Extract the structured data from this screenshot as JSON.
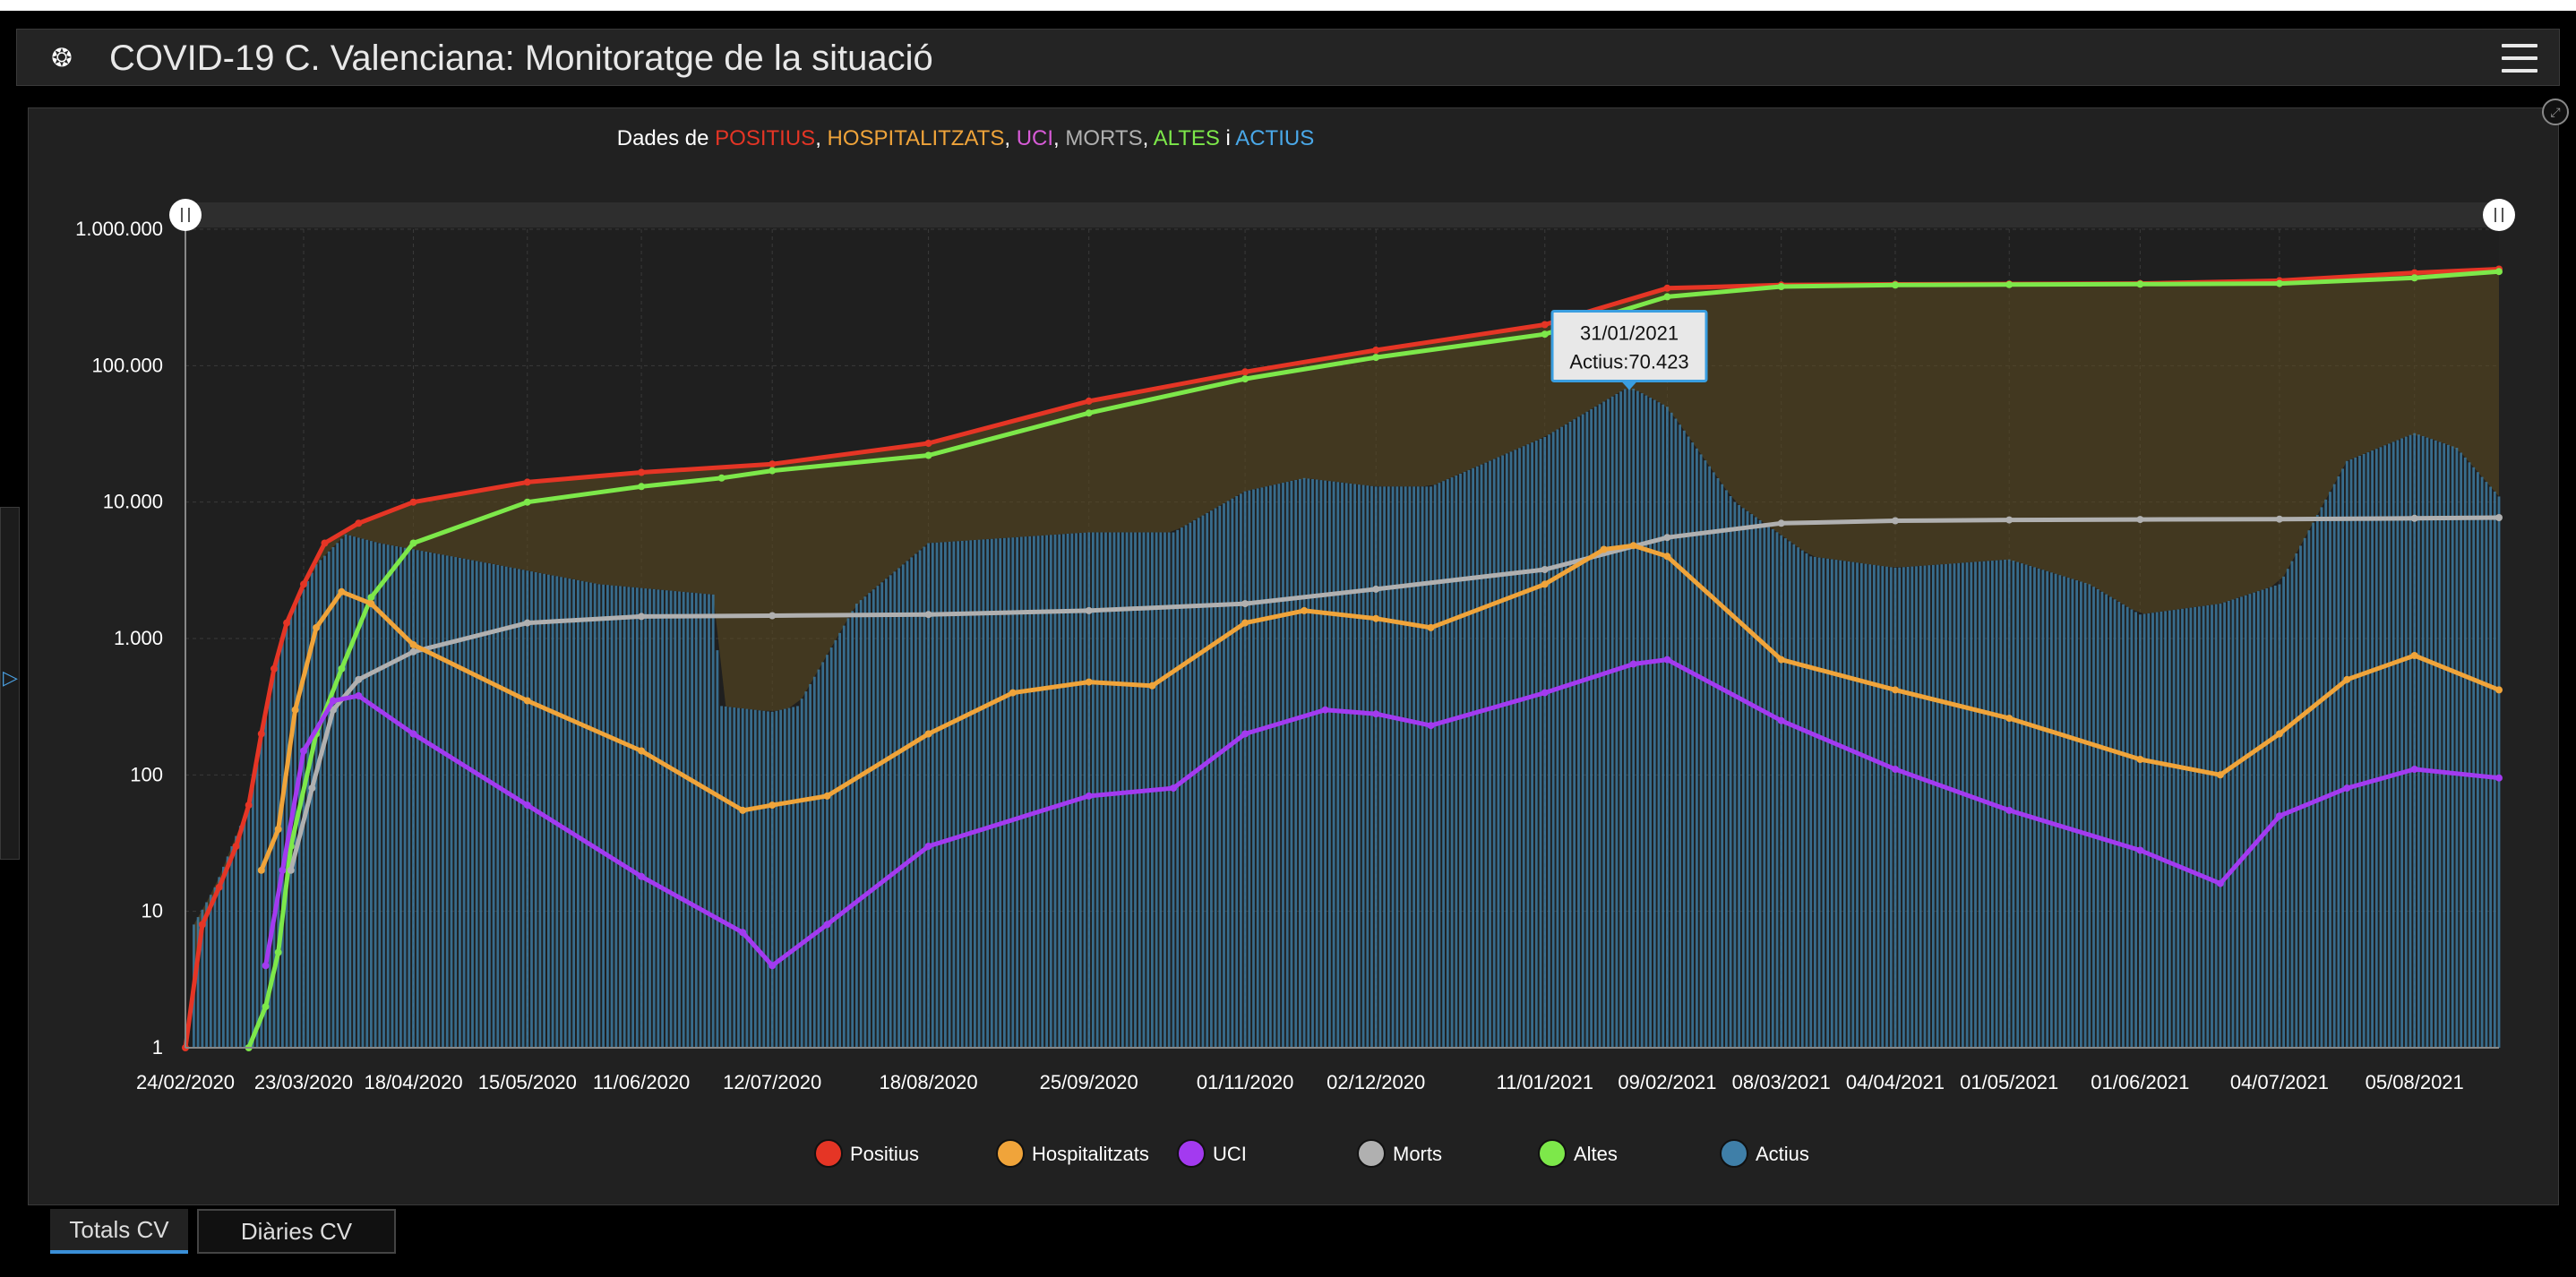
{
  "app": {
    "title": "COVID-19 C. Valenciana: Monitoratge de la situació",
    "logo_icon": "virus-logo-icon",
    "menu_icon": "hamburger-menu-icon"
  },
  "tabs": [
    {
      "label": "Totals CV",
      "active": true
    },
    {
      "label": "Diàries CV",
      "active": false
    }
  ],
  "tooltip": {
    "date": "31/01/2021",
    "text": "Actius:70.423"
  },
  "colors": {
    "positius": "#e53525",
    "hospitalitzats": "#f0a43a",
    "uci": "#a33af0",
    "morts": "#b0b0b0",
    "altes": "#7de84a",
    "actius": "#3f7fa8"
  },
  "chart_data": {
    "type": "line",
    "title_parts": [
      {
        "text": "Dades de ",
        "color": "#ffffff"
      },
      {
        "text": "POSITIUS",
        "color": "#e53525"
      },
      {
        "text": ", ",
        "color": "#ffffff"
      },
      {
        "text": "HOSPITALITZATS",
        "color": "#f0a43a"
      },
      {
        "text": ", ",
        "color": "#ffffff"
      },
      {
        "text": "UCI",
        "color": "#d65ad6"
      },
      {
        "text": ", ",
        "color": "#ffffff"
      },
      {
        "text": "MORTS",
        "color": "#b0b0b0"
      },
      {
        "text": ", ",
        "color": "#ffffff"
      },
      {
        "text": "ALTES",
        "color": "#7de84a"
      },
      {
        "text": " i ",
        "color": "#ffffff"
      },
      {
        "text": "ACTIUS",
        "color": "#4aa8e8"
      }
    ],
    "y_scale": "log",
    "ylim": [
      1,
      1000000
    ],
    "y_ticks": [
      {
        "value": 1,
        "label": "1"
      },
      {
        "value": 10,
        "label": "10"
      },
      {
        "value": 100,
        "label": "100"
      },
      {
        "value": 1000,
        "label": "1.000"
      },
      {
        "value": 10000,
        "label": "10.000"
      },
      {
        "value": 100000,
        "label": "100.000"
      },
      {
        "value": 1000000,
        "label": "1.000.000"
      }
    ],
    "x_range": [
      "2020-02-24",
      "2021-08-25"
    ],
    "x_ticks": [
      {
        "date": "2020-02-24",
        "label": "24/02/2020"
      },
      {
        "date": "2020-03-23",
        "label": "23/03/2020"
      },
      {
        "date": "2020-04-18",
        "label": "18/04/2020"
      },
      {
        "date": "2020-05-15",
        "label": "15/05/2020"
      },
      {
        "date": "2020-06-11",
        "label": "11/06/2020"
      },
      {
        "date": "2020-07-12",
        "label": "12/07/2020"
      },
      {
        "date": "2020-08-18",
        "label": "18/08/2020"
      },
      {
        "date": "2020-09-25",
        "label": "25/09/2020"
      },
      {
        "date": "2020-11-01",
        "label": "01/11/2020"
      },
      {
        "date": "2020-12-02",
        "label": "02/12/2020"
      },
      {
        "date": "2021-01-11",
        "label": "11/01/2021"
      },
      {
        "date": "2021-02-09",
        "label": "09/02/2021"
      },
      {
        "date": "2021-03-08",
        "label": "08/03/2021"
      },
      {
        "date": "2021-04-04",
        "label": "04/04/2021"
      },
      {
        "date": "2021-05-01",
        "label": "01/05/2021"
      },
      {
        "date": "2021-06-01",
        "label": "01/06/2021"
      },
      {
        "date": "2021-07-04",
        "label": "04/07/2021"
      },
      {
        "date": "2021-08-05",
        "label": "05/08/2021"
      }
    ],
    "grid": true,
    "legend_position": "bottom",
    "series": [
      {
        "key": "positius",
        "name": "Positius",
        "color": "#e53525",
        "style": "line",
        "points": [
          [
            "2020-02-24",
            1
          ],
          [
            "2020-02-28",
            8
          ],
          [
            "2020-03-03",
            15
          ],
          [
            "2020-03-07",
            30
          ],
          [
            "2020-03-10",
            60
          ],
          [
            "2020-03-13",
            200
          ],
          [
            "2020-03-16",
            600
          ],
          [
            "2020-03-19",
            1300
          ],
          [
            "2020-03-23",
            2500
          ],
          [
            "2020-03-28",
            5000
          ],
          [
            "2020-04-05",
            7000
          ],
          [
            "2020-04-18",
            10000
          ],
          [
            "2020-05-15",
            14000
          ],
          [
            "2020-06-11",
            16500
          ],
          [
            "2020-07-12",
            19000
          ],
          [
            "2020-08-18",
            27000
          ],
          [
            "2020-09-25",
            55000
          ],
          [
            "2020-11-01",
            90000
          ],
          [
            "2020-12-02",
            130000
          ],
          [
            "2021-01-11",
            200000
          ],
          [
            "2021-02-09",
            370000
          ],
          [
            "2021-03-08",
            390000
          ],
          [
            "2021-04-04",
            395000
          ],
          [
            "2021-05-01",
            397000
          ],
          [
            "2021-06-01",
            400000
          ],
          [
            "2021-07-04",
            420000
          ],
          [
            "2021-08-05",
            480000
          ],
          [
            "2021-08-25",
            510000
          ]
        ]
      },
      {
        "key": "altes",
        "name": "Altes",
        "color": "#7de84a",
        "style": "line",
        "points": [
          [
            "2020-03-10",
            1
          ],
          [
            "2020-03-14",
            2
          ],
          [
            "2020-03-17",
            5
          ],
          [
            "2020-03-20",
            30
          ],
          [
            "2020-03-26",
            200
          ],
          [
            "2020-04-01",
            600
          ],
          [
            "2020-04-08",
            2000
          ],
          [
            "2020-04-18",
            5000
          ],
          [
            "2020-05-15",
            10000
          ],
          [
            "2020-06-11",
            13000
          ],
          [
            "2020-06-30",
            15000
          ],
          [
            "2020-07-12",
            17000
          ],
          [
            "2020-08-18",
            22000
          ],
          [
            "2020-09-25",
            45000
          ],
          [
            "2020-11-01",
            80000
          ],
          [
            "2020-12-02",
            115000
          ],
          [
            "2021-01-11",
            170000
          ],
          [
            "2021-02-09",
            320000
          ],
          [
            "2021-03-08",
            380000
          ],
          [
            "2021-04-04",
            390000
          ],
          [
            "2021-05-01",
            393000
          ],
          [
            "2021-06-01",
            396000
          ],
          [
            "2021-07-04",
            400000
          ],
          [
            "2021-08-05",
            440000
          ],
          [
            "2021-08-25",
            490000
          ]
        ]
      },
      {
        "key": "morts",
        "name": "Morts",
        "color": "#b0b0b0",
        "style": "line",
        "points": [
          [
            "2020-03-20",
            20
          ],
          [
            "2020-03-25",
            80
          ],
          [
            "2020-03-30",
            300
          ],
          [
            "2020-04-05",
            500
          ],
          [
            "2020-04-18",
            800
          ],
          [
            "2020-05-15",
            1300
          ],
          [
            "2020-06-11",
            1450
          ],
          [
            "2020-07-12",
            1470
          ],
          [
            "2020-08-18",
            1500
          ],
          [
            "2020-09-25",
            1600
          ],
          [
            "2020-11-01",
            1800
          ],
          [
            "2020-12-02",
            2300
          ],
          [
            "2021-01-11",
            3200
          ],
          [
            "2021-02-09",
            5500
          ],
          [
            "2021-03-08",
            7000
          ],
          [
            "2021-04-04",
            7300
          ],
          [
            "2021-05-01",
            7400
          ],
          [
            "2021-06-01",
            7450
          ],
          [
            "2021-07-04",
            7500
          ],
          [
            "2021-08-05",
            7600
          ],
          [
            "2021-08-25",
            7700
          ]
        ]
      },
      {
        "key": "hospitalitzats",
        "name": "Hospitalitzats",
        "color": "#f0a43a",
        "style": "line",
        "points": [
          [
            "2020-03-13",
            20
          ],
          [
            "2020-03-17",
            40
          ],
          [
            "2020-03-21",
            300
          ],
          [
            "2020-03-26",
            1200
          ],
          [
            "2020-04-01",
            2200
          ],
          [
            "2020-04-08",
            1800
          ],
          [
            "2020-04-18",
            900
          ],
          [
            "2020-05-15",
            350
          ],
          [
            "2020-06-11",
            150
          ],
          [
            "2020-07-05",
            55
          ],
          [
            "2020-07-12",
            60
          ],
          [
            "2020-07-25",
            70
          ],
          [
            "2020-08-18",
            200
          ],
          [
            "2020-09-07",
            400
          ],
          [
            "2020-09-25",
            480
          ],
          [
            "2020-10-10",
            450
          ],
          [
            "2020-11-01",
            1300
          ],
          [
            "2020-11-15",
            1600
          ],
          [
            "2020-12-02",
            1400
          ],
          [
            "2020-12-15",
            1200
          ],
          [
            "2021-01-11",
            2500
          ],
          [
            "2021-01-25",
            4500
          ],
          [
            "2021-02-01",
            4800
          ],
          [
            "2021-02-09",
            4000
          ],
          [
            "2021-03-08",
            700
          ],
          [
            "2021-04-04",
            420
          ],
          [
            "2021-05-01",
            260
          ],
          [
            "2021-06-01",
            130
          ],
          [
            "2021-06-20",
            100
          ],
          [
            "2021-07-04",
            200
          ],
          [
            "2021-07-20",
            500
          ],
          [
            "2021-08-05",
            750
          ],
          [
            "2021-08-25",
            420
          ]
        ]
      },
      {
        "key": "uci",
        "name": "UCI",
        "color": "#a33af0",
        "style": "line",
        "points": [
          [
            "2020-03-14",
            4
          ],
          [
            "2020-03-18",
            20
          ],
          [
            "2020-03-23",
            150
          ],
          [
            "2020-03-30",
            350
          ],
          [
            "2020-04-05",
            380
          ],
          [
            "2020-04-18",
            200
          ],
          [
            "2020-05-15",
            60
          ],
          [
            "2020-06-11",
            18
          ],
          [
            "2020-07-05",
            7
          ],
          [
            "2020-07-12",
            4
          ],
          [
            "2020-07-25",
            8
          ],
          [
            "2020-08-18",
            30
          ],
          [
            "2020-09-25",
            70
          ],
          [
            "2020-10-15",
            80
          ],
          [
            "2020-11-01",
            200
          ],
          [
            "2020-11-20",
            300
          ],
          [
            "2020-12-02",
            280
          ],
          [
            "2020-12-15",
            230
          ],
          [
            "2021-01-11",
            400
          ],
          [
            "2021-02-01",
            650
          ],
          [
            "2021-02-09",
            700
          ],
          [
            "2021-03-08",
            250
          ],
          [
            "2021-04-04",
            110
          ],
          [
            "2021-05-01",
            55
          ],
          [
            "2021-06-01",
            28
          ],
          [
            "2021-06-20",
            16
          ],
          [
            "2021-07-04",
            50
          ],
          [
            "2021-07-20",
            80
          ],
          [
            "2021-08-05",
            110
          ],
          [
            "2021-08-25",
            95
          ]
        ]
      },
      {
        "key": "actius",
        "name": "Actius",
        "color": "#3f7fa8",
        "style": "bar",
        "points": [
          [
            "2020-02-26",
            8
          ],
          [
            "2020-03-02",
            15
          ],
          [
            "2020-03-06",
            30
          ],
          [
            "2020-03-10",
            60
          ],
          [
            "2020-03-13",
            200
          ],
          [
            "2020-03-16",
            600
          ],
          [
            "2020-03-20",
            1500
          ],
          [
            "2020-03-26",
            3500
          ],
          [
            "2020-04-02",
            5800
          ],
          [
            "2020-04-10",
            5000
          ],
          [
            "2020-05-01",
            3800
          ],
          [
            "2020-06-01",
            2500
          ],
          [
            "2020-06-28",
            2100
          ],
          [
            "2020-06-30",
            320
          ],
          [
            "2020-07-12",
            290
          ],
          [
            "2020-07-18",
            320
          ],
          [
            "2020-08-01",
            1800
          ],
          [
            "2020-08-18",
            5000
          ],
          [
            "2020-09-25",
            6000
          ],
          [
            "2020-10-15",
            6000
          ],
          [
            "2020-11-01",
            12000
          ],
          [
            "2020-11-15",
            15000
          ],
          [
            "2020-12-02",
            13000
          ],
          [
            "2020-12-15",
            13000
          ],
          [
            "2021-01-11",
            30000
          ],
          [
            "2021-01-31",
            70423
          ],
          [
            "2021-02-09",
            50000
          ],
          [
            "2021-02-25",
            10000
          ],
          [
            "2021-03-15",
            4000
          ],
          [
            "2021-04-04",
            3300
          ],
          [
            "2021-05-01",
            3800
          ],
          [
            "2021-05-20",
            2500
          ],
          [
            "2021-06-01",
            1500
          ],
          [
            "2021-06-20",
            1800
          ],
          [
            "2021-07-04",
            2500
          ],
          [
            "2021-07-20",
            20000
          ],
          [
            "2021-08-05",
            32000
          ],
          [
            "2021-08-15",
            25000
          ],
          [
            "2021-08-25",
            11000
          ]
        ]
      }
    ]
  }
}
